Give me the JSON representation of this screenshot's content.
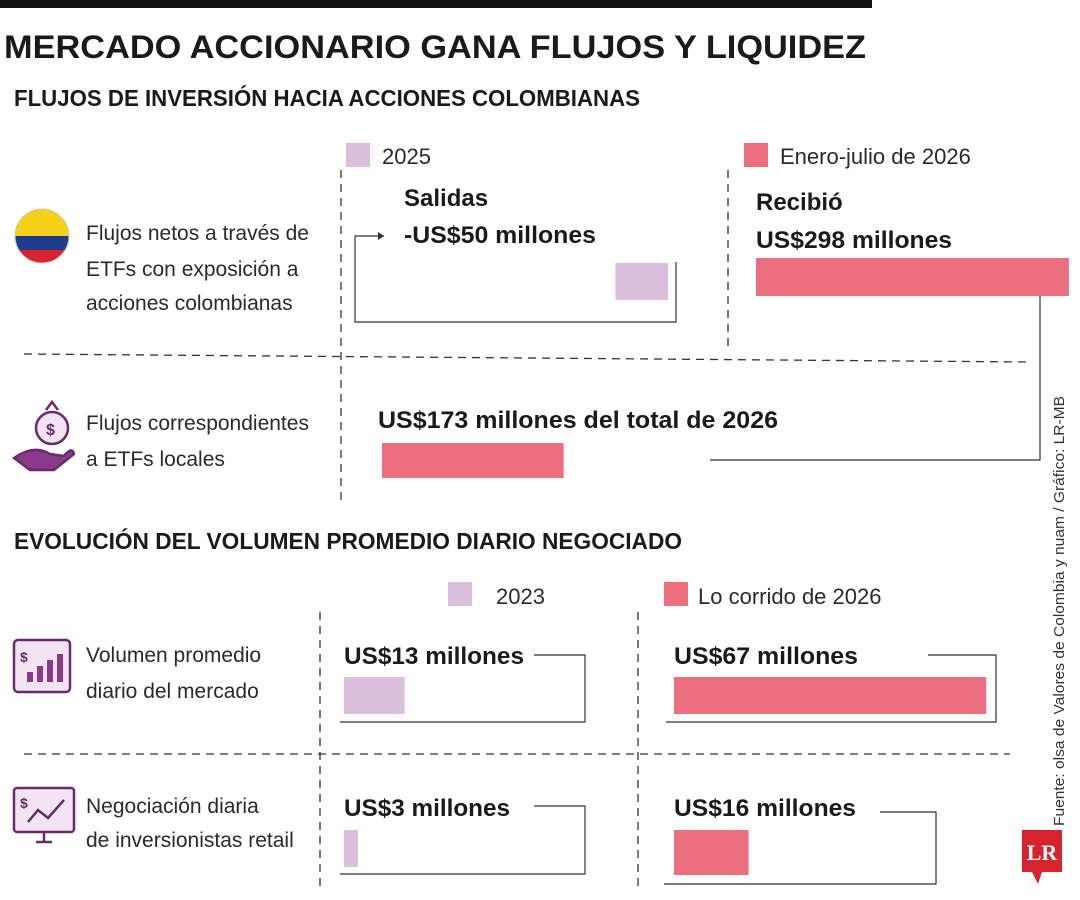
{
  "title": "MERCADO ACCIONARIO GANA FLUJOS Y LIQUIDEZ",
  "sections": [
    {
      "heading": "FLUJOS DE INVERSIÓN HACIA ACCIONES COLOMBIANAS",
      "legend": [
        {
          "label": "2025",
          "color": "#dcbfdc"
        },
        {
          "label": "Enero-julio de 2026",
          "color": "#ec6f80"
        }
      ],
      "rows": [
        {
          "label": [
            "Flujos netos a través de",
            "ETFs con exposición a",
            "acciones colombianas"
          ],
          "items": [
            {
              "caption": "Salidas",
              "value": -50,
              "value_label": "-US$50 millones",
              "color": "#dcbfdc"
            },
            {
              "caption": "Recibió",
              "value": 298,
              "value_label": "US$298 millones",
              "color": "#ec6f80"
            }
          ]
        },
        {
          "label": [
            "Flujos correspondientes",
            "a ETFs locales"
          ],
          "items": [
            {
              "value": 173,
              "value_label": "US$173 millones del total de 2026",
              "color": "#ec6f80"
            }
          ]
        }
      ]
    },
    {
      "heading": "EVOLUCIÓN DEL VOLUMEN PROMEDIO DIARIO NEGOCIADO",
      "legend": [
        {
          "label": "2023",
          "color": "#dcbfdc"
        },
        {
          "label": "Lo corrido de 2026",
          "color": "#ec6f80"
        }
      ],
      "rows": [
        {
          "label": [
            "Volumen promedio",
            "diario del mercado"
          ],
          "items": [
            {
              "value": 13,
              "value_label": "US$13 millones",
              "color": "#dcbfdc"
            },
            {
              "value": 67,
              "value_label": "US$67 millones",
              "color": "#ec6f80"
            }
          ]
        },
        {
          "label": [
            "Negociación diaria",
            "de inversionistas retail"
          ],
          "items": [
            {
              "value": 3,
              "value_label": "US$3 millones",
              "color": "#dcbfdc"
            },
            {
              "value": 16,
              "value_label": "US$16 millones",
              "color": "#ec6f80"
            }
          ]
        }
      ]
    }
  ],
  "source": "Fuente: olsa de Valores de Colombia y nuam / Gráfico: LR-MB",
  "logo": "LR"
}
